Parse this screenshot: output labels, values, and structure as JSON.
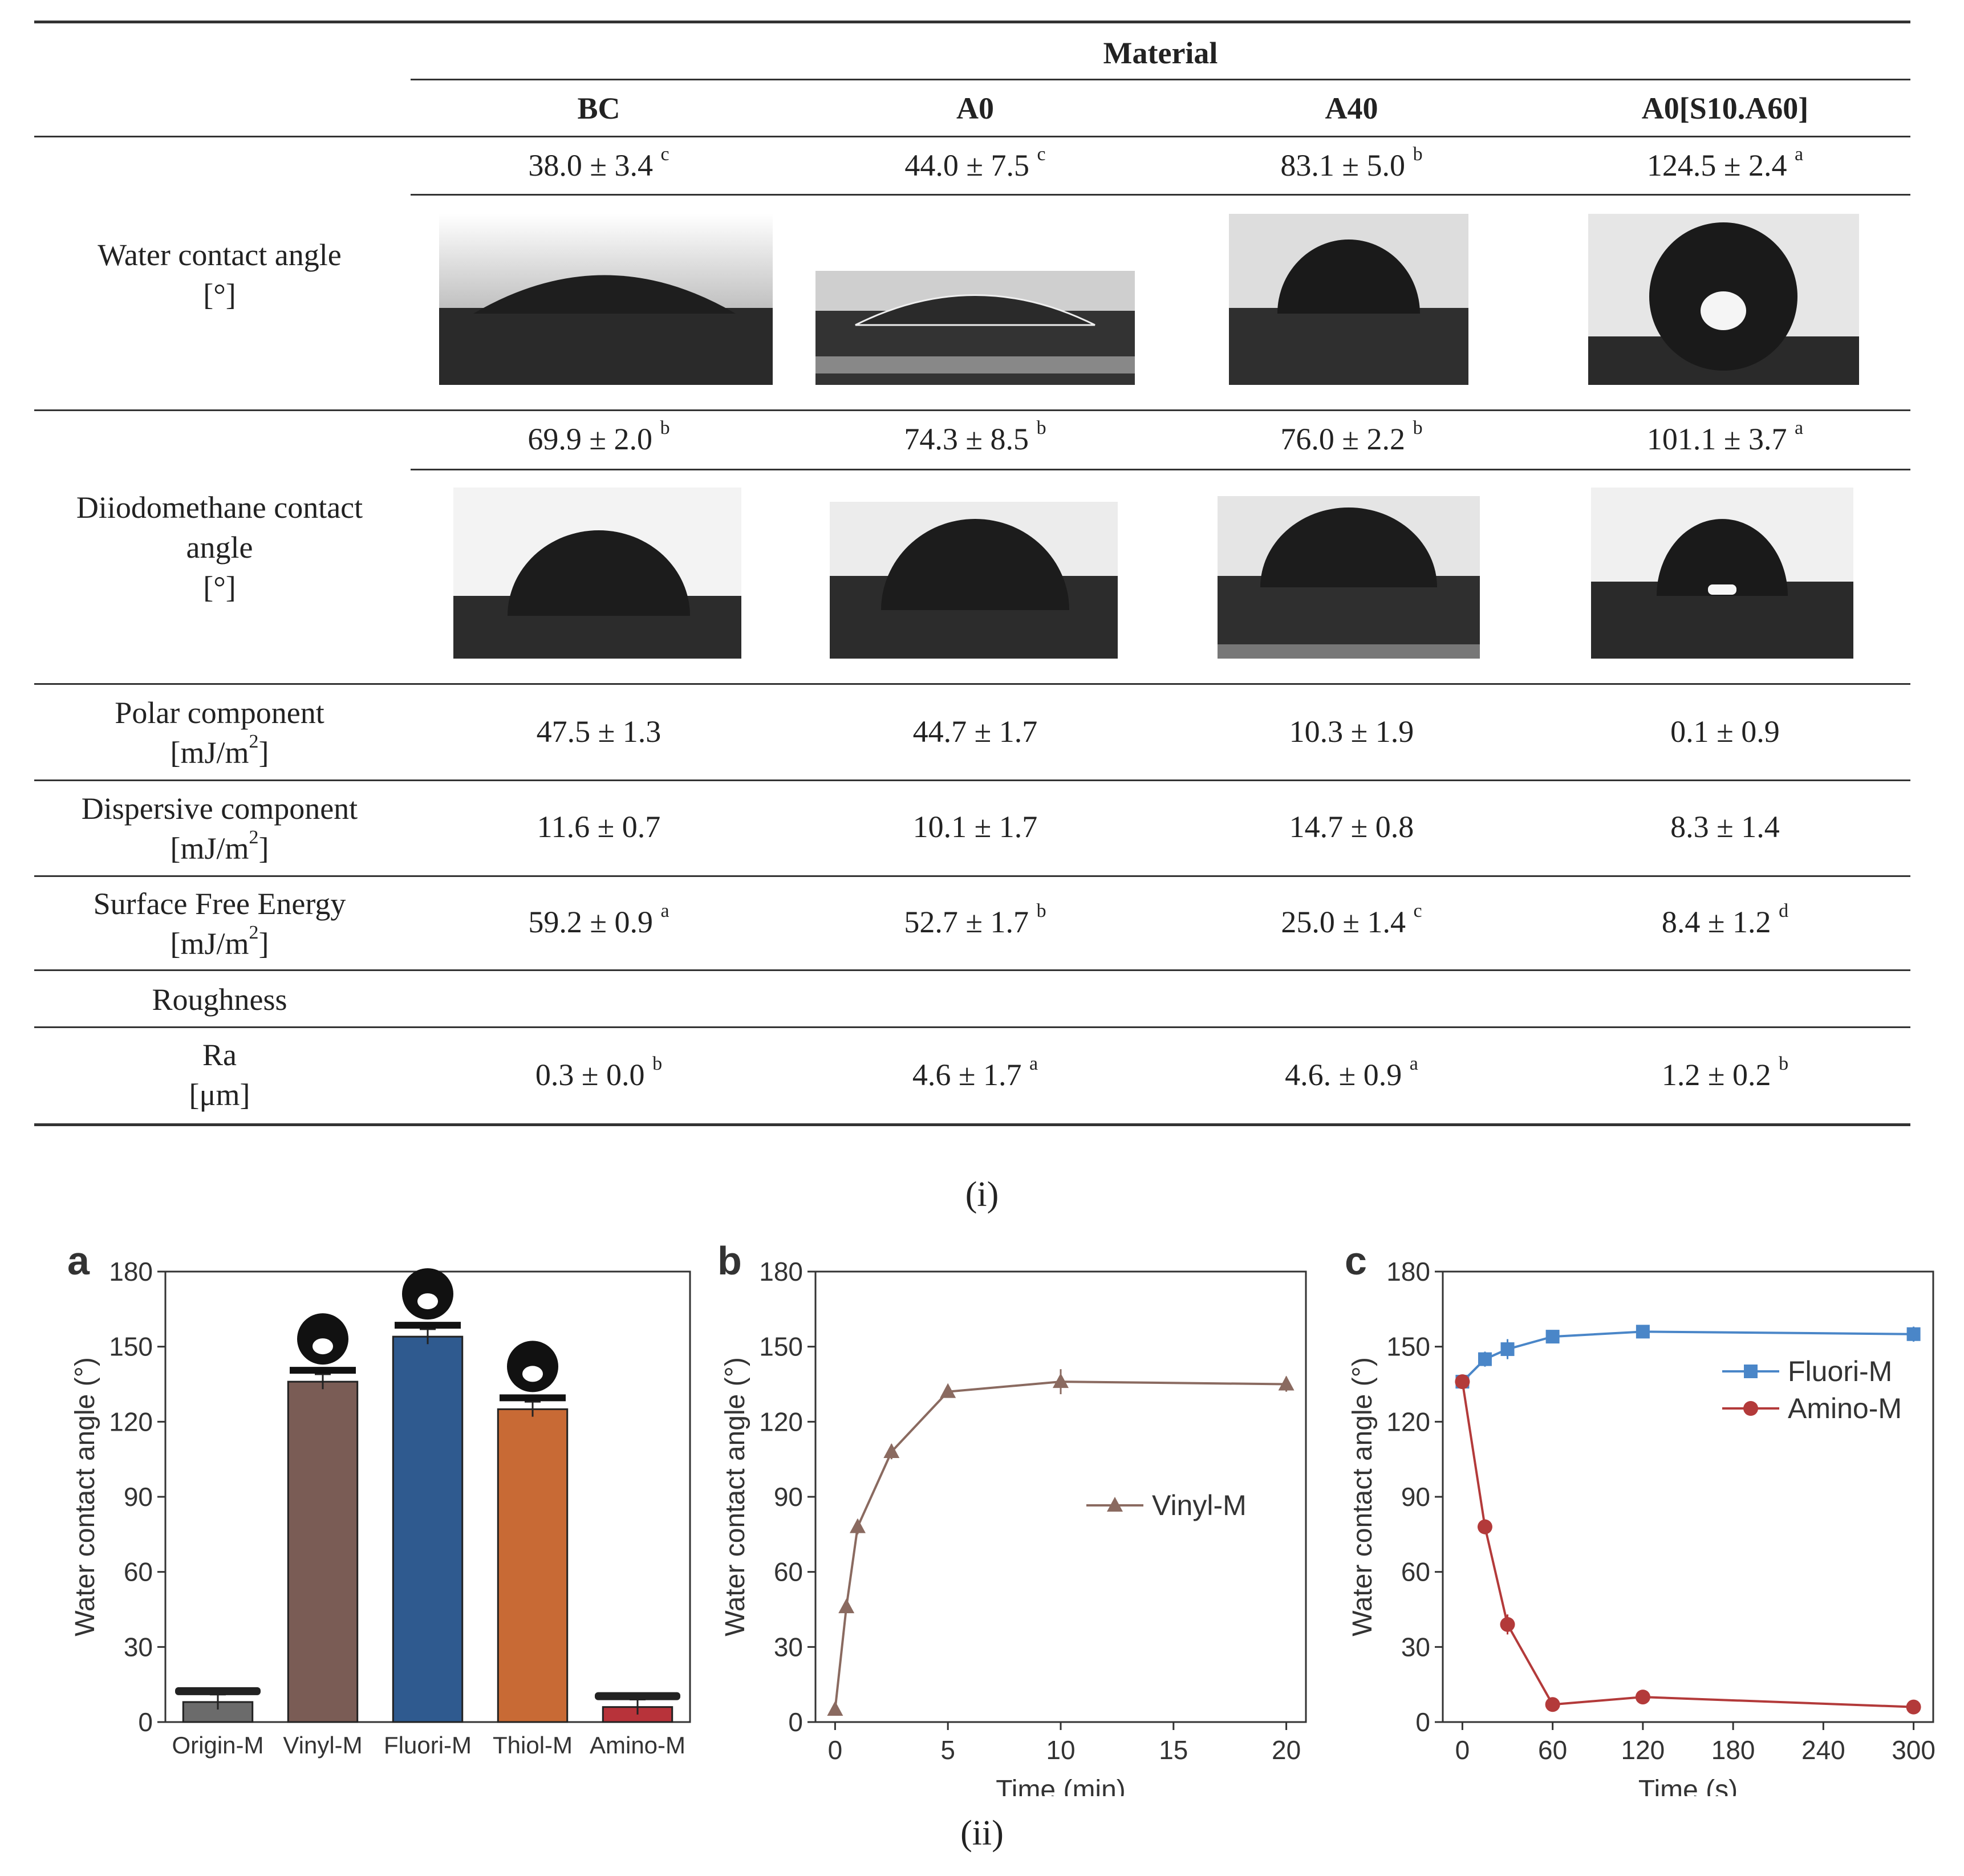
{
  "table": {
    "header_group": "Material",
    "columns": [
      "BC",
      "A0",
      "A40",
      "A0[S10.A60]"
    ],
    "rows": [
      {
        "key": "water",
        "label": [
          "Water contact angle",
          "[°]"
        ],
        "values": [
          {
            "v": "38.0 ± 3.4",
            "s": "c"
          },
          {
            "v": "44.0 ± 7.5",
            "s": "c"
          },
          {
            "v": "83.1 ± 5.0",
            "s": "b"
          },
          {
            "v": "124.5 ± 2.4",
            "s": "a"
          }
        ]
      },
      {
        "key": "diiodo",
        "label": [
          "Diiodomethane contact",
          "angle",
          "[°]"
        ],
        "values": [
          {
            "v": "69.9 ± 2.0",
            "s": "b"
          },
          {
            "v": "74.3 ± 8.5",
            "s": "b"
          },
          {
            "v": "76.0 ± 2.2",
            "s": "b"
          },
          {
            "v": "101.1 ± 3.7",
            "s": "a"
          }
        ]
      },
      {
        "key": "polar",
        "label": [
          "Polar component",
          "[mJ/m",
          "2",
          "]"
        ],
        "values": [
          {
            "v": "47.5 ± 1.3",
            "s": ""
          },
          {
            "v": "44.7 ± 1.7",
            "s": ""
          },
          {
            "v": "10.3 ± 1.9",
            "s": ""
          },
          {
            "v": "0.1 ± 0.9",
            "s": ""
          }
        ]
      },
      {
        "key": "dispersive",
        "label": [
          "Dispersive component",
          "[mJ/m",
          "2",
          "]"
        ],
        "values": [
          {
            "v": "11.6 ± 0.7",
            "s": ""
          },
          {
            "v": "10.1 ± 1.7",
            "s": ""
          },
          {
            "v": "14.7 ± 0.8",
            "s": ""
          },
          {
            "v": "8.3 ± 1.4",
            "s": ""
          }
        ]
      },
      {
        "key": "sfe",
        "label": [
          "Surface Free Energy",
          "[mJ/m",
          "2",
          "]"
        ],
        "values": [
          {
            "v": "59.2 ± 0.9",
            "s": "a"
          },
          {
            "v": "52.7 ± 1.7",
            "s": "b"
          },
          {
            "v": "25.0 ± 1.4",
            "s": "c"
          },
          {
            "v": "8.4 ± 1.2",
            "s": "d"
          }
        ]
      },
      {
        "key": "roughness",
        "label": [
          "Roughness"
        ],
        "values": []
      },
      {
        "key": "ra",
        "label": [
          "Ra",
          "[μm]"
        ],
        "values": [
          {
            "v": "0.3 ± 0.0",
            "s": "b"
          },
          {
            "v": "4.6 ± 1.7",
            "s": "a"
          },
          {
            "v": "4.6. ± 0.9",
            "s": "a"
          },
          {
            "v": "1.2 ± 0.2",
            "s": "b"
          }
        ]
      }
    ]
  },
  "labels": {
    "i": "(i)",
    "ii": "(ii)"
  },
  "colors": {
    "origin": "#6b6b6b",
    "vinyl": "#7a5c55",
    "fluori": "#2f5a8f",
    "thiol": "#c86a35",
    "amino": "#b8333a",
    "line_fluori": "#4a86c8",
    "line_amino": "#b33a3a",
    "line_vinyl": "#8a6a60"
  },
  "chart_data": [
    {
      "type": "bar",
      "panel": "a",
      "ylabel": "Water contact angle (°)",
      "ylim": [
        0,
        180
      ],
      "yticks": [
        0,
        30,
        60,
        90,
        120,
        150,
        180
      ],
      "categories": [
        "Origin-M",
        "Vinyl-M",
        "Fluori-M",
        "Thiol-M",
        "Amino-M"
      ],
      "values": [
        8,
        136,
        154,
        125,
        6
      ],
      "errors": [
        3,
        3,
        3,
        3,
        3
      ]
    },
    {
      "type": "line",
      "panel": "b",
      "xlabel": "Time (min)",
      "ylabel": "Water contact angle (°)",
      "xlim": [
        0,
        20
      ],
      "ylim": [
        0,
        180
      ],
      "xticks": [
        0,
        5,
        10,
        15,
        20
      ],
      "yticks": [
        0,
        30,
        60,
        90,
        120,
        150,
        180
      ],
      "series": [
        {
          "name": "Vinyl-M",
          "x": [
            0,
            0.5,
            1,
            2.5,
            5,
            10,
            20
          ],
          "y": [
            5,
            46,
            78,
            108,
            132,
            136,
            135
          ],
          "err": [
            1,
            2,
            3,
            3,
            2,
            5,
            3
          ]
        }
      ]
    },
    {
      "type": "line",
      "panel": "c",
      "xlabel": "Time (s)",
      "ylabel": "Water contact angle (°)",
      "xlim": [
        0,
        300
      ],
      "ylim": [
        0,
        180
      ],
      "xticks": [
        0,
        60,
        120,
        180,
        240,
        300
      ],
      "yticks": [
        0,
        30,
        60,
        90,
        120,
        150,
        180
      ],
      "series": [
        {
          "name": "Fluori-M",
          "x": [
            0,
            15,
            30,
            60,
            120,
            300
          ],
          "y": [
            136,
            145,
            149,
            154,
            156,
            155
          ],
          "err": [
            2,
            3,
            4,
            2,
            2,
            3
          ]
        },
        {
          "name": "Amino-M",
          "x": [
            0,
            15,
            30,
            60,
            120,
            300
          ],
          "y": [
            136,
            78,
            39,
            7,
            10,
            6
          ],
          "err": [
            2,
            3,
            4,
            2,
            2,
            2
          ]
        }
      ]
    }
  ]
}
